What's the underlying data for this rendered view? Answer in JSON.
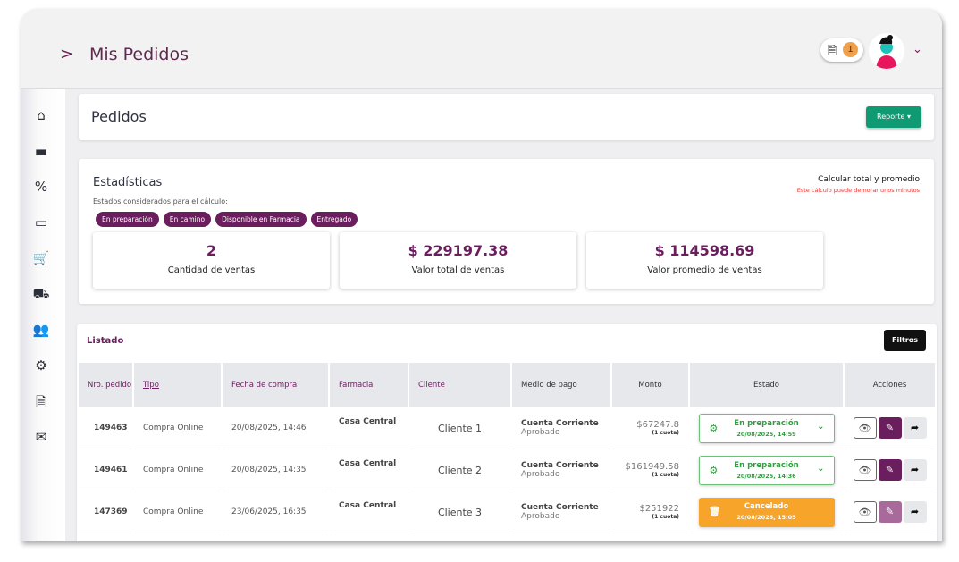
{
  "header": {
    "title": "Mis Pedidos",
    "chevron": ">",
    "notification_count": "1",
    "dropdown": "⌄"
  },
  "sidebar": {
    "items": [
      "home-icon",
      "archive-icon",
      "percent-icon",
      "desktop-icon",
      "cart-icon",
      "truck-icon",
      "users-icon",
      "cogs-icon",
      "file-icon",
      "envelope-icon"
    ]
  },
  "pedidos": {
    "title": "Pedidos",
    "report_button": "Reporte ▾"
  },
  "stats": {
    "title": "Estadísticas",
    "subtitle": "Estados considerados para el cálculo:",
    "chips": [
      "En preparación",
      "En camino",
      "Disponible en Farmacia",
      "Entregado"
    ],
    "calc_label": "Calcular total y promedio",
    "calc_warning": "Este cálculo puede demorar unos minutos",
    "cards": [
      {
        "value": "2",
        "label": "Cantidad de ventas"
      },
      {
        "value": "$ 229197.38",
        "label": "Valor total de ventas"
      },
      {
        "value": "$ 114598.69",
        "label": "Valor promedio de ventas"
      }
    ]
  },
  "listado": {
    "title": "Listado",
    "filters_button": "Filtros",
    "columns": [
      "Nro. pedido",
      "Tipo",
      "Fecha de compra",
      "Farmacia",
      "Cliente",
      "Medio de pago",
      "Monto",
      "Estado",
      "Acciones"
    ],
    "rows": [
      {
        "nro": "149463",
        "tipo": "Compra Online",
        "fecha": "20/08/2025, 14:46",
        "farmacia": "Casa Central",
        "cliente": "Cliente 1",
        "medio": "Cuenta Corriente",
        "medio_estado": "Aprobado",
        "monto": "$67247.8",
        "cuotas": "(1 cuota)",
        "estado": "En preparación",
        "estado_fecha": "20/08/2025, 14:59"
      },
      {
        "nro": "149461",
        "tipo": "Compra Online",
        "fecha": "20/08/2025, 14:35",
        "farmacia": "Casa Central",
        "cliente": "Cliente 2",
        "medio": "Cuenta Corriente",
        "medio_estado": "Aprobado",
        "monto": "$161949.58",
        "cuotas": "(1 cuota)",
        "estado": "En preparación",
        "estado_fecha": "20/08/2025, 14:36"
      },
      {
        "nro": "147369",
        "tipo": "Compra Online",
        "fecha": "23/06/2025, 16:35",
        "farmacia": "Casa Central",
        "cliente": "Cliente 3",
        "medio": "Cuenta Corriente",
        "medio_estado": "Aprobado",
        "monto": "$251922",
        "cuotas": "(1 cuota)",
        "estado": "Cancelado",
        "estado_fecha": "20/08/2025, 15:05"
      }
    ]
  },
  "colors": {
    "brand": "#6b1e5e",
    "report": "#0f9a73",
    "ok": "#2e9e3e",
    "cancel": "#f7a52a"
  }
}
